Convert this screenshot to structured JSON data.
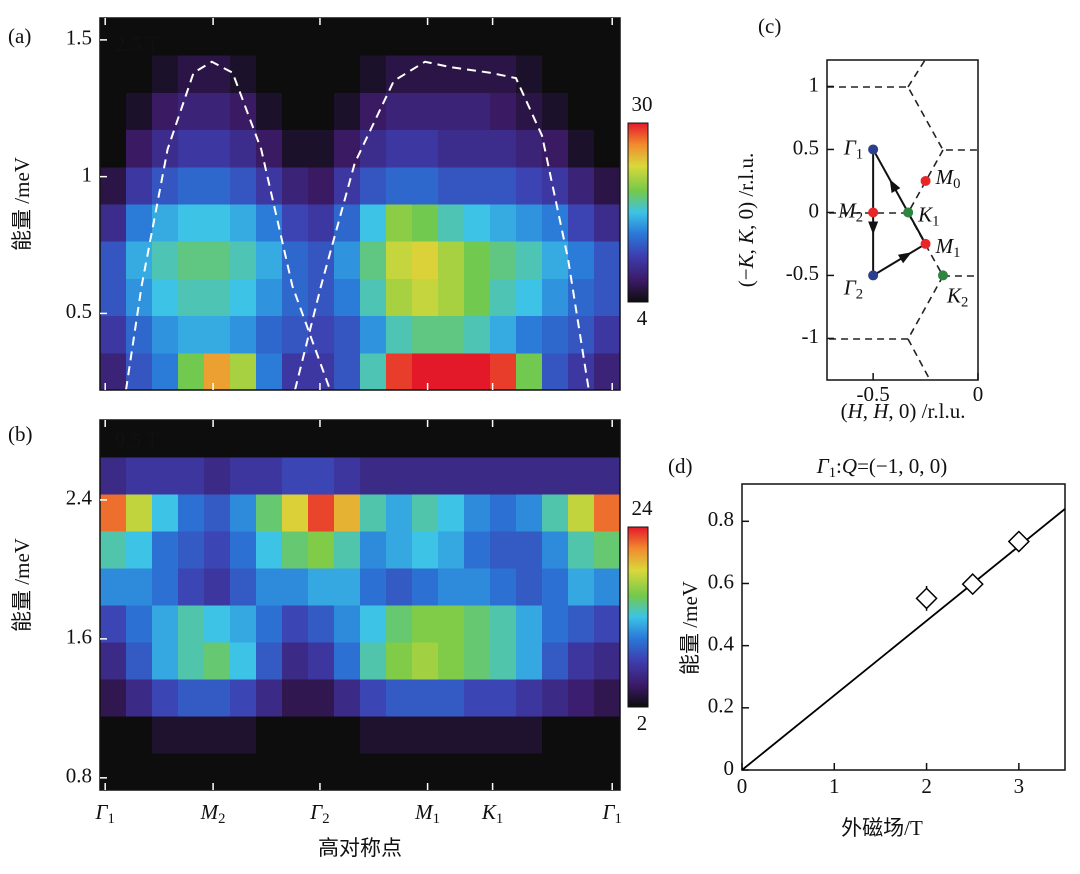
{
  "chart_data": [
    {
      "type": "heatmap",
      "panel_label": "(a)",
      "annotation": "2.5 T",
      "ylabel": "能量 /meV",
      "xlim": [
        0,
        20
      ],
      "ylim": [
        0.22,
        1.58
      ],
      "yticks": [
        0.5,
        1,
        1.5
      ],
      "colorbar_lim": [
        4,
        30
      ],
      "colorbar_ticks": [
        4,
        30
      ],
      "z": [
        [
          8,
          12,
          14,
          20,
          26,
          22,
          14,
          10,
          10,
          12,
          18,
          29,
          30,
          30,
          30,
          29,
          20,
          12,
          10,
          8
        ],
        [
          10,
          13,
          15,
          16,
          16,
          15,
          13,
          12,
          11,
          12,
          15,
          18,
          19,
          19,
          18,
          16,
          14,
          13,
          12,
          10
        ],
        [
          12,
          15,
          17,
          18,
          18,
          17,
          15,
          13,
          12,
          14,
          18,
          22,
          23,
          22,
          20,
          18,
          17,
          15,
          13,
          12
        ],
        [
          12,
          16,
          18,
          19,
          19,
          18,
          16,
          13,
          12,
          15,
          19,
          23,
          24,
          22,
          20,
          19,
          18,
          16,
          14,
          12
        ],
        [
          9,
          14,
          16,
          17,
          17,
          16,
          14,
          11,
          10,
          13,
          17,
          21,
          20,
          18,
          17,
          16,
          15,
          14,
          11,
          9
        ],
        [
          6,
          10,
          12,
          13,
          13,
          12,
          10,
          8,
          7,
          10,
          12,
          13,
          13,
          12,
          12,
          12,
          11,
          10,
          8,
          6
        ],
        [
          4,
          7,
          9,
          10,
          10,
          9,
          7,
          5,
          5,
          7,
          9,
          10,
          10,
          9,
          9,
          9,
          8,
          7,
          5,
          4
        ],
        [
          4,
          5,
          7,
          8,
          8,
          7,
          5,
          4,
          4,
          5,
          7,
          8,
          8,
          8,
          8,
          7,
          6,
          5,
          4,
          4
        ],
        [
          4,
          4,
          5,
          6,
          6,
          5,
          4,
          4,
          4,
          4,
          5,
          6,
          6,
          6,
          6,
          6,
          5,
          4,
          4,
          4
        ],
        [
          4,
          4,
          4,
          4,
          4,
          4,
          4,
          4,
          4,
          4,
          4,
          4,
          4,
          4,
          4,
          4,
          4,
          4,
          4,
          4
        ]
      ],
      "curves": [
        {
          "x": [
            1,
            1.6,
            2.6,
            3.6,
            4.3,
            5.1,
            6.2,
            7.4,
            8.85
          ],
          "y": [
            0.22,
            0.6,
            1.1,
            1.38,
            1.42,
            1.38,
            1.1,
            0.6,
            0.22
          ]
        },
        {
          "x": [
            7.5,
            8.5,
            9.8,
            11.3,
            12.5,
            13.5,
            15,
            16,
            17,
            18,
            18.8
          ],
          "y": [
            0.22,
            0.6,
            1.05,
            1.35,
            1.42,
            1.4,
            1.38,
            1.36,
            1.15,
            0.7,
            0.22
          ]
        }
      ],
      "curve_color": "#ffffff"
    },
    {
      "type": "heatmap",
      "panel_label": "(b)",
      "annotation": "9.5 T",
      "ylabel": "能量 /meV",
      "xlabel": "高对称点",
      "xlim": [
        0,
        20
      ],
      "ylim": [
        0.73,
        2.86
      ],
      "yticks": [
        0.8,
        1.6,
        2.4
      ],
      "xticks": [
        {
          "value": 0.2,
          "label": "Γ1"
        },
        {
          "value": 4.35,
          "label": "M2"
        },
        {
          "value": 8.46,
          "label": "Γ2"
        },
        {
          "value": 12.6,
          "label": "M1"
        },
        {
          "value": 15.1,
          "label": "K1"
        },
        {
          "value": 19.7,
          "label": "Γ1"
        }
      ],
      "xtick_colors": [
        "#2b4f9e",
        "#e8262a",
        "#2b4f9e",
        "#e8262a",
        "#2e8540",
        "#2b4f9e"
      ],
      "colorbar_lim": [
        2,
        24
      ],
      "colorbar_ticks": [
        2,
        24
      ],
      "z": [
        [
          2,
          2,
          2,
          2,
          2,
          2,
          2,
          2,
          2,
          2,
          2,
          2,
          2,
          2,
          2,
          2,
          2,
          2,
          2,
          2
        ],
        [
          2,
          2,
          3,
          3,
          3,
          3,
          2,
          2,
          2,
          2,
          3,
          3,
          3,
          3,
          3,
          3,
          3,
          2,
          2,
          2
        ],
        [
          4,
          6,
          8,
          9,
          9,
          8,
          6,
          4,
          4,
          6,
          8,
          9,
          9,
          9,
          8,
          8,
          7,
          6,
          5,
          4
        ],
        [
          6,
          9,
          12,
          14,
          15,
          13,
          9,
          6,
          7,
          10,
          14,
          16,
          17,
          16,
          15,
          14,
          12,
          9,
          7,
          6
        ],
        [
          8,
          10,
          12,
          14,
          13,
          12,
          10,
          8,
          9,
          11,
          13,
          15,
          16,
          16,
          15,
          14,
          12,
          10,
          9,
          8
        ],
        [
          11,
          11,
          10,
          8,
          7,
          9,
          11,
          11,
          12,
          12,
          10,
          9,
          10,
          11,
          11,
          10,
          9,
          10,
          12,
          11
        ],
        [
          14,
          13,
          10,
          9,
          8,
          10,
          13,
          15,
          16,
          14,
          11,
          12,
          13,
          12,
          10,
          9,
          9,
          11,
          14,
          15
        ],
        [
          22,
          18,
          13,
          10,
          9,
          11,
          15,
          19,
          23,
          20,
          14,
          12,
          14,
          13,
          11,
          10,
          11,
          14,
          18,
          22
        ],
        [
          6,
          7,
          7,
          7,
          6,
          7,
          7,
          8,
          8,
          7,
          6,
          6,
          6,
          6,
          6,
          6,
          6,
          6,
          6,
          6
        ],
        [
          2,
          2,
          2,
          2,
          2,
          2,
          2,
          2,
          2,
          2,
          2,
          2,
          2,
          2,
          2,
          2,
          2,
          2,
          2,
          2
        ]
      ]
    },
    {
      "type": "scatter",
      "panel_label": "(c)",
      "xlabel": "(H, H, 0) /r.l.u.",
      "ylabel": "(−K, K, 0) /r.l.u.",
      "xlim": [
        -0.72,
        0
      ],
      "ylim": [
        -1.33,
        1.21
      ],
      "xticks": [
        -0.5,
        0
      ],
      "yticks": [
        -1,
        -0.5,
        0,
        0.5,
        1
      ],
      "points": {
        "x": [
          -0.5,
          -0.5,
          -0.5,
          -0.25,
          -0.333,
          -0.25,
          -0.167
        ],
        "y": [
          0.5,
          0,
          -0.5,
          -0.25,
          0,
          0.25,
          -0.5
        ],
        "labels": [
          "Γ1",
          "M2",
          "Γ2",
          "M1",
          "K1",
          "M0",
          "K2"
        ],
        "colors": [
          "#2b3f8c",
          "#e8262a",
          "#2b3f8c",
          "#e8262a",
          "#2e8540",
          "#e8262a",
          "#2e8540"
        ]
      }
    },
    {
      "type": "line",
      "panel_label": "(d)",
      "title": "Γ1:Q=(−1, 0, 0)",
      "xlabel": "外磁场/T",
      "ylabel": "能量 /meV",
      "xlim": [
        0,
        3.5
      ],
      "ylim": [
        0,
        0.92
      ],
      "xticks": [
        0,
        1,
        2,
        3
      ],
      "yticks": [
        0,
        0.2,
        0.4,
        0.6,
        0.8
      ],
      "series": [
        {
          "x": [
            0,
            3.5
          ],
          "y": [
            0,
            0.84
          ],
          "color": "#000000"
        },
        {
          "x": [
            2,
            2.5,
            3
          ],
          "y": [
            0.552,
            0.598,
            0.735
          ],
          "errors": [
            0.04,
            0.012,
            0.03
          ],
          "marker": "diamond",
          "color": "#000000"
        }
      ]
    }
  ]
}
